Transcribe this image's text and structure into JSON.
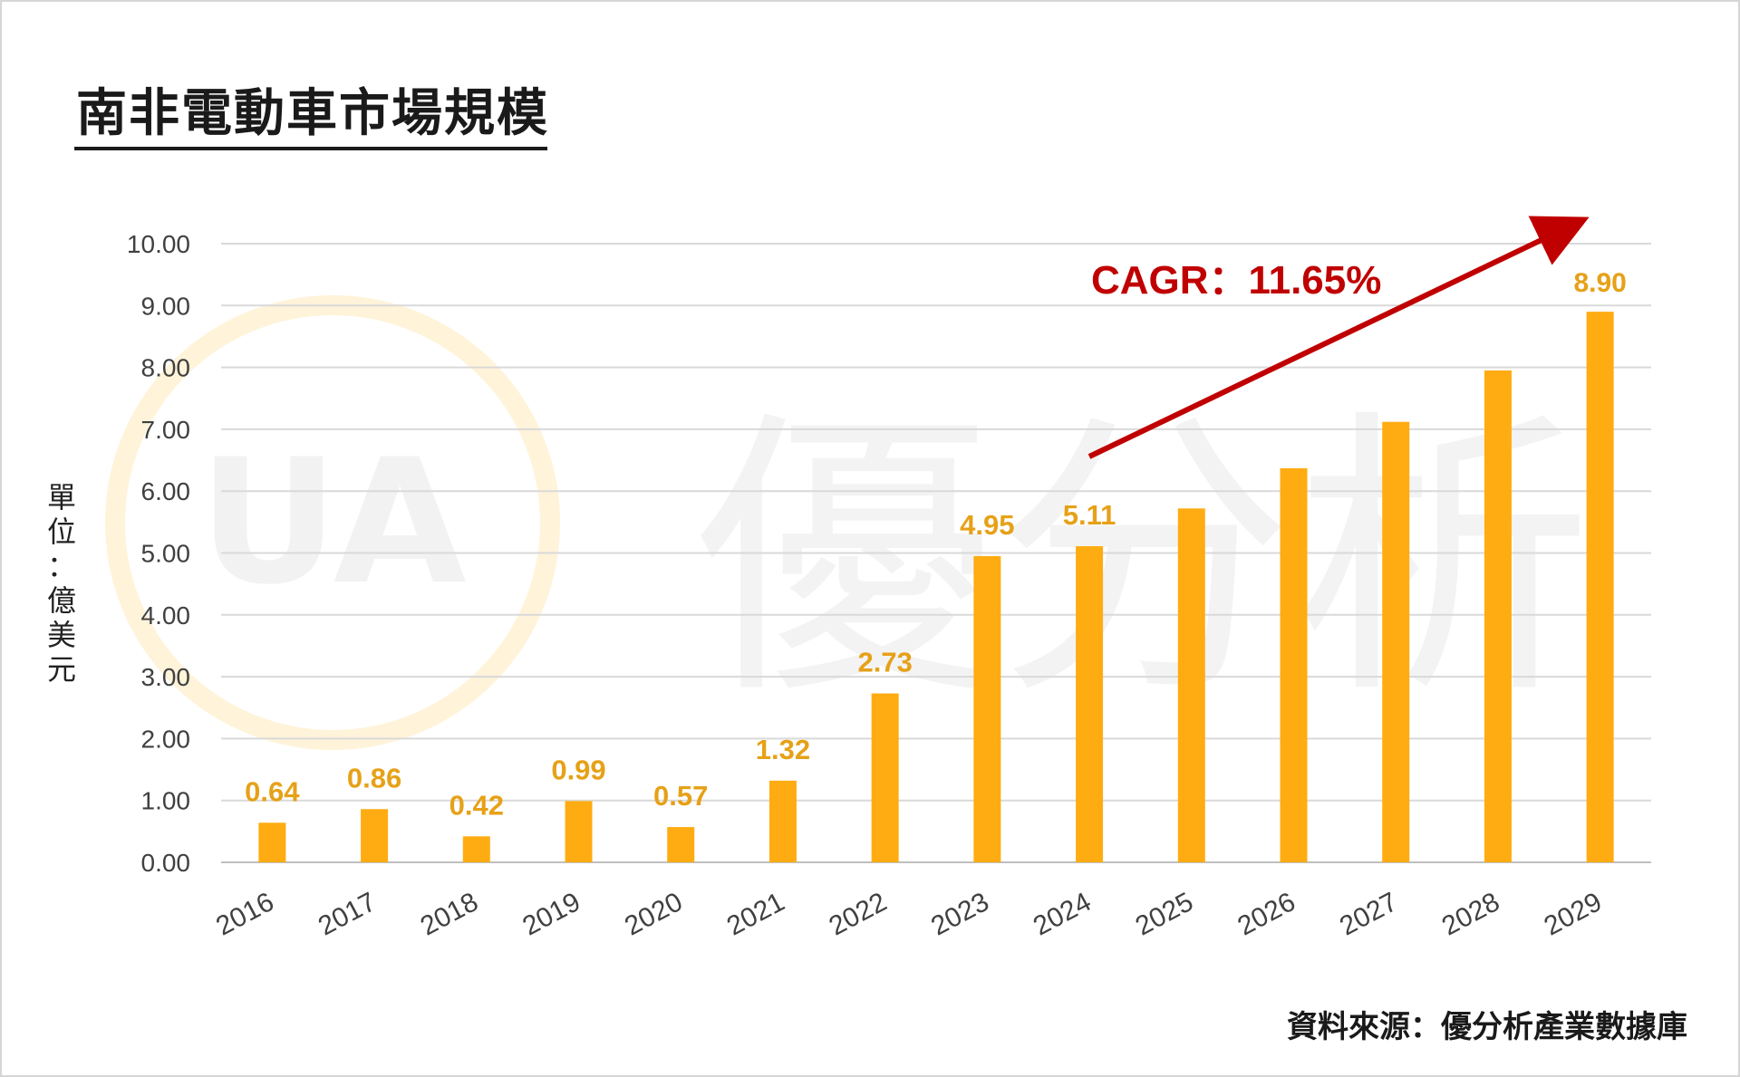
{
  "title": "南非電動車市場規模",
  "unit_label": [
    "單",
    "位",
    "：",
    "億",
    "美",
    "元"
  ],
  "source": "資料來源：優分析產業數據庫",
  "watermark": {
    "logo": "UA",
    "text": "優分析"
  },
  "colors": {
    "bar": "#FFAC12",
    "value_label": "#E6A117",
    "cagr": "#C00000",
    "grid": "#d9d9d9",
    "axis_text": "#404040"
  },
  "chart_data": {
    "type": "bar",
    "categories": [
      "2016",
      "2017",
      "2018",
      "2019",
      "2020",
      "2021",
      "2022",
      "2023",
      "2024",
      "2025",
      "2026",
      "2027",
      "2028",
      "2029"
    ],
    "values": [
      0.64,
      0.86,
      0.42,
      0.99,
      0.57,
      1.32,
      2.73,
      4.95,
      5.11,
      5.72,
      6.37,
      7.12,
      7.95,
      8.9
    ],
    "data_labels": [
      "0.64",
      "0.86",
      "0.42",
      "0.99",
      "0.57",
      "1.32",
      "2.73",
      "4.95",
      "5.11",
      "",
      "",
      "",
      "",
      "8.90"
    ],
    "ylim": [
      0,
      10
    ],
    "yticks": [
      "0.00",
      "1.00",
      "2.00",
      "3.00",
      "4.00",
      "5.00",
      "6.00",
      "7.00",
      "8.00",
      "9.00",
      "10.00"
    ],
    "grid": true,
    "annotation": "CAGR：11.65%"
  }
}
